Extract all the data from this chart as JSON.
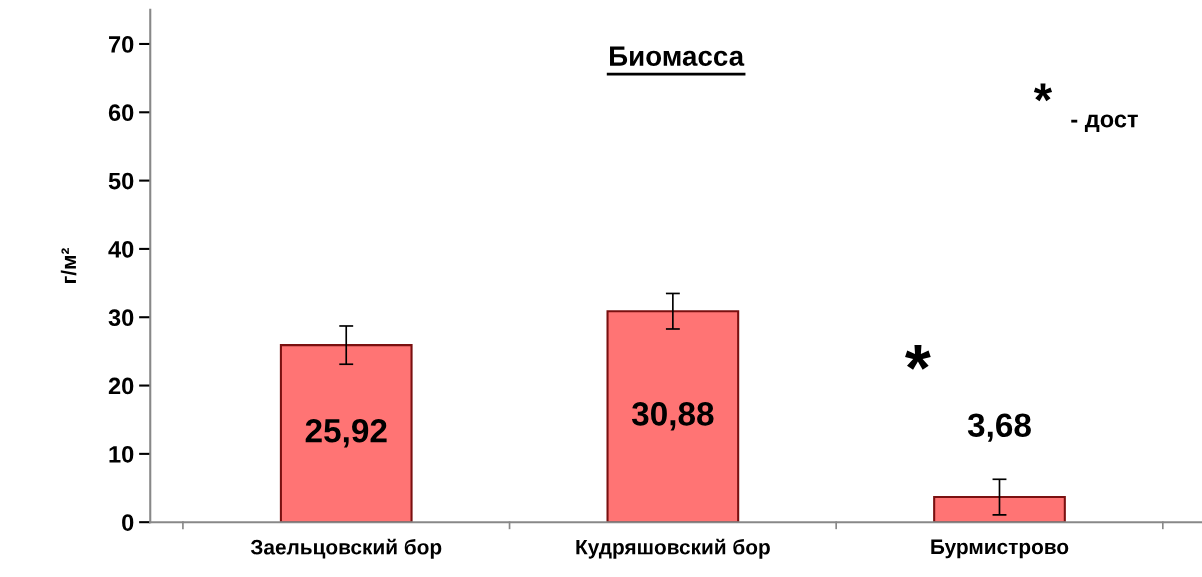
{
  "chart_data": {
    "type": "bar",
    "title": "Биомасса",
    "ylabel": "г/м²",
    "categories": [
      "Заельцовский бор",
      "Кудряшовский бор",
      "Бурмистрово"
    ],
    "values": [
      25.92,
      30.88,
      3.68
    ],
    "errors": [
      2.8,
      2.6,
      2.6
    ],
    "value_labels": [
      "25,92",
      "30,88",
      "3,68"
    ],
    "color": "#ff7474",
    "ylim": [
      0,
      75
    ],
    "yticks": [
      0,
      10,
      20,
      30,
      40,
      50,
      60,
      70
    ],
    "annotations": [
      "*",
      "* - дост"
    ],
    "grid": false
  }
}
